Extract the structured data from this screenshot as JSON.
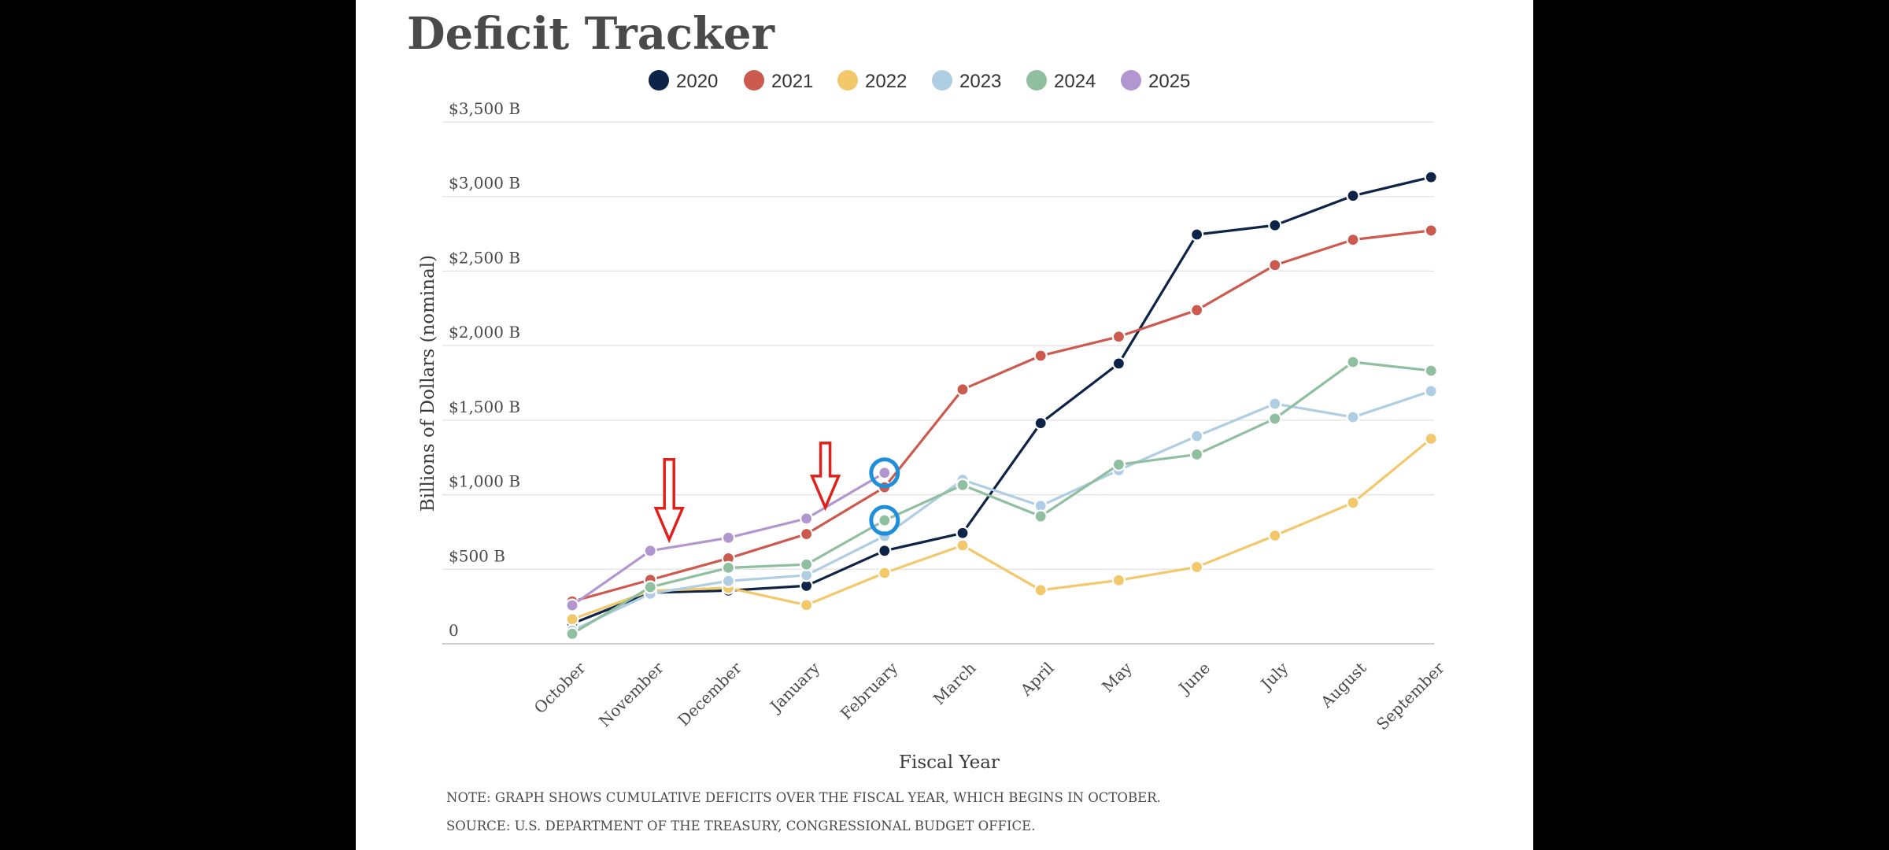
{
  "title": "Deficit Tracker",
  "note": "NOTE: GRAPH SHOWS CUMULATIVE DEFICITS OVER THE FISCAL YEAR, WHICH BEGINS IN OCTOBER.",
  "source": "SOURCE: U.S. DEPARTMENT OF THE TREASURY, CONGRESSIONAL BUDGET OFFICE.",
  "chart_data": {
    "type": "line",
    "title": "Deficit Tracker",
    "xlabel": "Fiscal Year",
    "ylabel": "Billions of Dollars (nominal)",
    "ylim": [
      0,
      3500
    ],
    "yticks": [
      0,
      500,
      1000,
      1500,
      2000,
      2500,
      3000,
      3500
    ],
    "ytick_labels": [
      "0",
      "$500 B",
      "$1,000 B",
      "$1,500 B",
      "$2,000 B",
      "$2,500 B",
      "$3,000 B",
      "$3,500 B"
    ],
    "categories": [
      "October",
      "November",
      "December",
      "January",
      "February",
      "March",
      "April",
      "May",
      "June",
      "July",
      "August",
      "September"
    ],
    "grid": true,
    "legend_position": "top",
    "series": [
      {
        "name": "2020",
        "color": "#0d2347",
        "values": [
          135,
          343,
          357,
          389,
          624,
          743,
          1480,
          1880,
          2745,
          2807,
          3005,
          3130
        ]
      },
      {
        "name": "2021",
        "color": "#cc5a4e",
        "values": [
          284,
          429,
          573,
          736,
          1050,
          1706,
          1932,
          2060,
          2238,
          2540,
          2710,
          2772
        ]
      },
      {
        "name": "2022",
        "color": "#f2c86a",
        "values": [
          165,
          355,
          375,
          260,
          475,
          660,
          360,
          426,
          515,
          726,
          946,
          1375
        ]
      },
      {
        "name": "2023",
        "color": "#afcde3",
        "values": [
          88,
          336,
          421,
          460,
          723,
          1100,
          925,
          1165,
          1393,
          1610,
          1520,
          1695
        ]
      },
      {
        "name": "2024",
        "color": "#8fbf9f",
        "values": [
          67,
          380,
          510,
          532,
          828,
          1065,
          855,
          1202,
          1270,
          1510,
          1890,
          1832
        ]
      },
      {
        "name": "2025",
        "color": "#b296cf",
        "values": [
          258,
          624,
          711,
          840,
          1147,
          null,
          null,
          null,
          null,
          null,
          null,
          null
        ]
      }
    ],
    "annotations": [
      {
        "type": "arrow",
        "color": "#e0201b",
        "near_category": "November",
        "series": "2025"
      },
      {
        "type": "arrow",
        "color": "#e0201b",
        "near_category": "January",
        "series": "2025"
      },
      {
        "type": "circle",
        "color": "#1f8fdc",
        "category": "February",
        "series": "2025"
      },
      {
        "type": "circle",
        "color": "#1f8fdc",
        "category": "February",
        "series": "2024"
      }
    ]
  }
}
